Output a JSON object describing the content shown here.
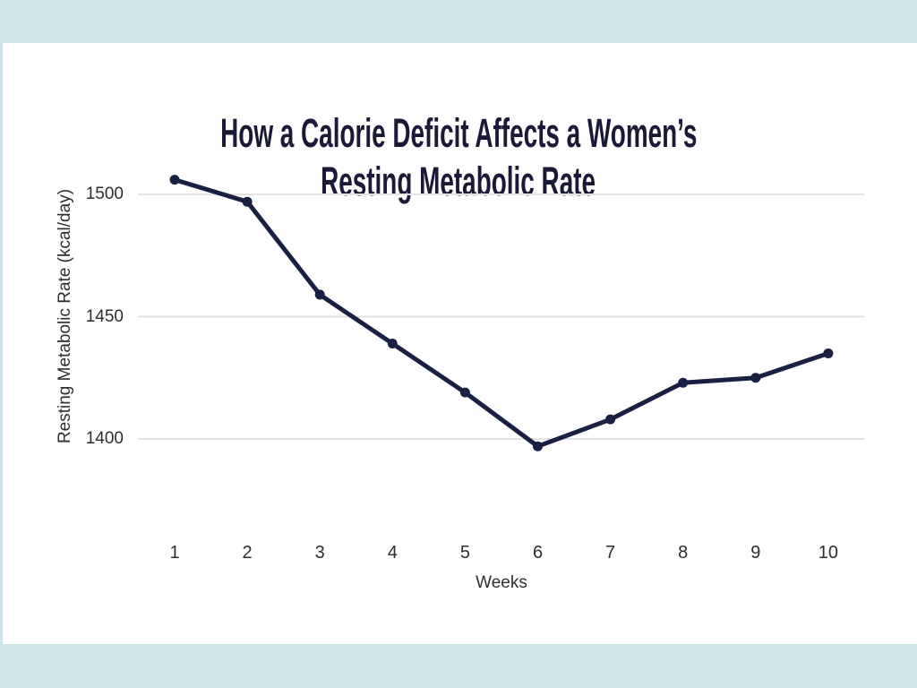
{
  "page": {
    "background_color": "#cee5e8",
    "card_color": "#ffffff"
  },
  "chart_data": {
    "type": "line",
    "title_line1": "How a Calorie Deficit Affects a Women’s",
    "title_line2": "Resting Metabolic Rate",
    "xlabel": "Weeks",
    "ylabel": "Resting Metabolic Rate (kcal/day)",
    "categories": [
      1,
      2,
      3,
      4,
      5,
      6,
      7,
      8,
      9,
      10
    ],
    "values": [
      1506,
      1497,
      1459,
      1439,
      1419,
      1397,
      1408,
      1423,
      1425,
      1435
    ],
    "yticks": [
      1500,
      1450,
      1400
    ],
    "ylim": [
      1380,
      1515
    ],
    "grid": "horizontal-only",
    "legend_position": "none",
    "line_color": "#1a2044",
    "marker_color": "#1a2044",
    "grid_color": "#e2e2e2",
    "title_color": "#1a1a38",
    "axis_text_color": "#2e2e2e"
  }
}
